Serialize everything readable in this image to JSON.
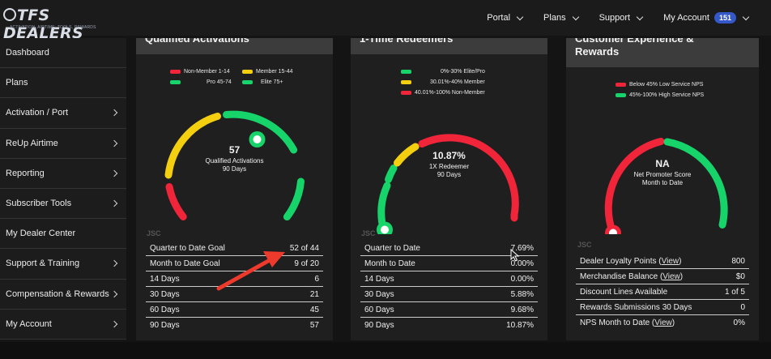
{
  "header": {
    "logo_text": "TFS DEALERS",
    "logo_tagline": "ACTIVATION, AIRTIME, TOOLS, REWARDS",
    "nav": [
      {
        "label": "Portal"
      },
      {
        "label": "Plans"
      },
      {
        "label": "Support"
      },
      {
        "label": "My Account",
        "badge": "151"
      }
    ]
  },
  "sidebar": {
    "items": [
      {
        "label": "Dashboard",
        "chevron": false
      },
      {
        "label": "Plans",
        "chevron": false
      },
      {
        "label": "Activation / Port",
        "chevron": true
      },
      {
        "label": "ReUp Airtime",
        "chevron": true
      },
      {
        "label": "Reporting",
        "chevron": true
      },
      {
        "label": "Subscriber Tools",
        "chevron": true
      },
      {
        "label": "My Dealer Center",
        "chevron": false
      },
      {
        "label": "Support & Training",
        "chevron": true
      },
      {
        "label": "Compensation & Rewards",
        "chevron": true
      },
      {
        "label": "My Account",
        "chevron": true
      }
    ]
  },
  "cards": {
    "qualified": {
      "title": "Qualified Activations",
      "legend": [
        "Non-Member 1-14",
        "Member 15-44",
        "Pro 45-74",
        "Elite 75+"
      ],
      "colors": [
        "#f1253a",
        "#f4cf10",
        "#16d46a",
        "#16d46a"
      ],
      "value": "57",
      "label1": "Qualified Activations",
      "label2": "90 Days",
      "watermark": "JSC",
      "rows": [
        {
          "label": "Quarter to Date Goal",
          "value": "52 of 44"
        },
        {
          "label": "Month to Date Goal",
          "value": "9 of 20"
        },
        {
          "label": "14 Days",
          "value": "6"
        },
        {
          "label": "30 Days",
          "value": "21"
        },
        {
          "label": "60 Days",
          "value": "45"
        },
        {
          "label": "90 Days",
          "value": "57"
        }
      ]
    },
    "redeemers": {
      "title": "1-Time Redeemers",
      "legend": [
        "0%-30% Elite/Pro",
        "30.01%-40% Member",
        "40.01%-100% Non-Member"
      ],
      "colors": [
        "#16d46a",
        "#f4cf10",
        "#f1253a"
      ],
      "value": "10.87%",
      "label1": "1X Redeemer",
      "label2": "90 Days",
      "watermark": "JSC",
      "rows": [
        {
          "label": "Quarter to Date",
          "value": "7.69%"
        },
        {
          "label": "Month to Date",
          "value": "0.00%"
        },
        {
          "label": "14 Days",
          "value": "0.00%"
        },
        {
          "label": "30 Days",
          "value": "5.88%"
        },
        {
          "label": "60 Days",
          "value": "9.68%"
        },
        {
          "label": "90 Days",
          "value": "10.87%"
        }
      ]
    },
    "cx": {
      "title": "Customer Experience & Rewards",
      "legend": [
        "Below 45% Low Service NPS",
        "45%-100% High Service NPS"
      ],
      "colors": [
        "#f1253a",
        "#16d46a"
      ],
      "value": "NA",
      "label1": "Net Promoter Score",
      "label2": "Month to Date",
      "watermark": "JSC",
      "rows": [
        {
          "label": "Dealer Loyalty Points",
          "link": "View",
          "value": "800"
        },
        {
          "label": "Merchandise Balance",
          "link": "View",
          "value": "$0"
        },
        {
          "label": "Discount Lines Available",
          "value": "1 of 5"
        },
        {
          "label": "Rewards Submissions 30 Days",
          "value": "0"
        },
        {
          "label": "NPS Month to Date",
          "link": "View",
          "value": "0%"
        }
      ]
    }
  },
  "annotation": {
    "color": "#ee3a2c",
    "icon": "arrow-icon"
  }
}
